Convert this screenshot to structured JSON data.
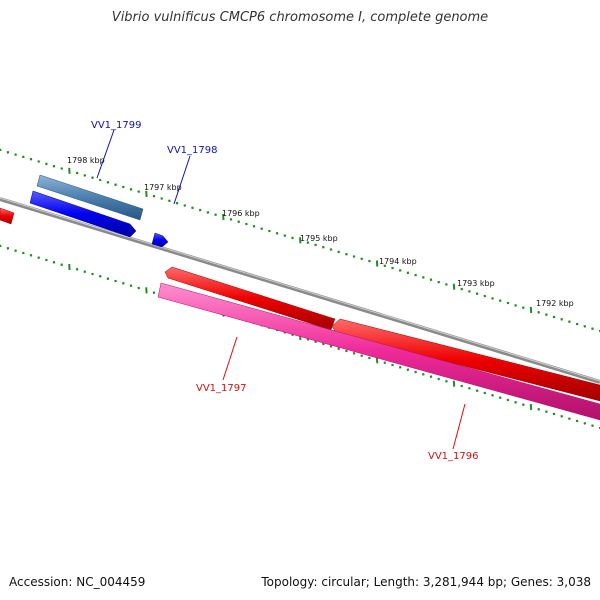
{
  "title": "Vibrio vulnificus CMCP6 chromosome I, complete genome",
  "footer": {
    "accession": "Accession: NC_004459",
    "summary": "Topology: circular; Length: 3,281,944 bp; Genes: 3,038"
  },
  "colors": {
    "backbone": "#7a7a7a",
    "tick": "#228b22",
    "forward_gene_dark": "#0000ee",
    "forward_gene_light": "#4a7fb0",
    "reverse_gene_red": "#ee0000",
    "reverse_gene_pink": "#ee2a99",
    "forward_label": "#1010b0",
    "reverse_label": "#d01010"
  },
  "scale_labels": [
    "1798 kbp",
    "1797 kbp",
    "1796 kbp",
    "1795 kbp",
    "1794 kbp",
    "1793 kbp",
    "1792 kbp"
  ],
  "genes": [
    {
      "label": "VV1_1799",
      "strand": "forward"
    },
    {
      "label": "VV1_1798",
      "strand": "forward"
    },
    {
      "label": "VV1_1797",
      "strand": "reverse"
    },
    {
      "label": "VV1_1796",
      "strand": "reverse"
    }
  ]
}
